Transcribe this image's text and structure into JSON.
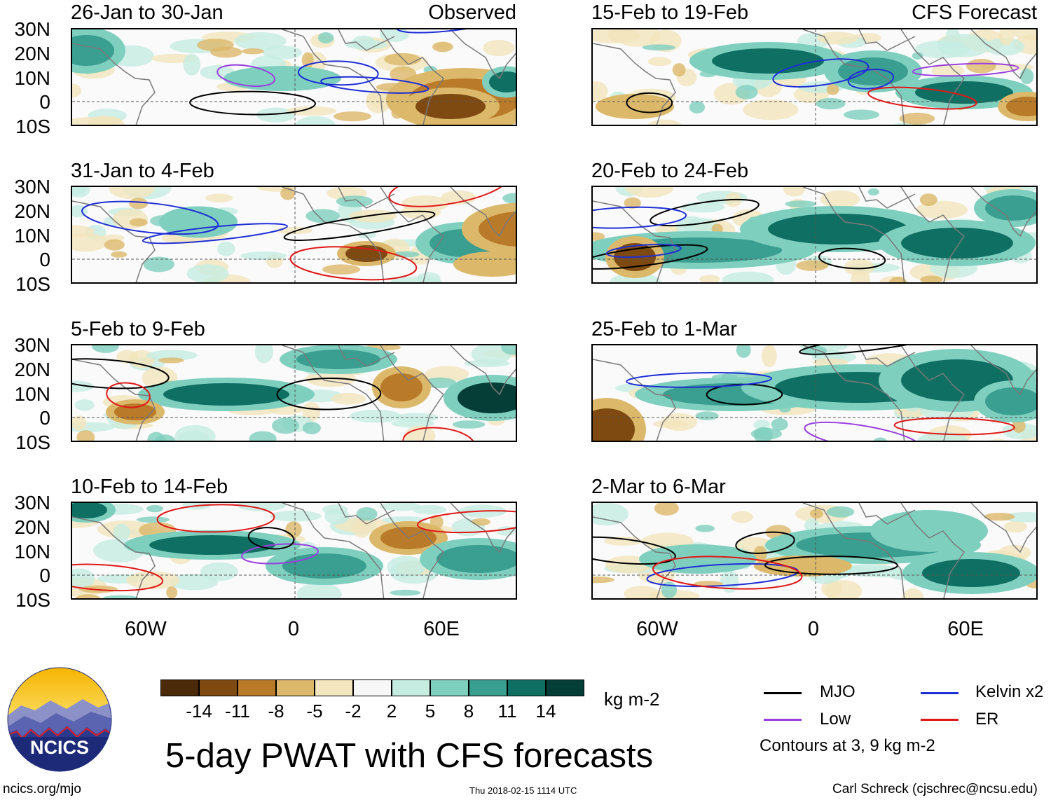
{
  "panels": [
    {
      "title": "26-Jan to 30-Jan",
      "tag": "Observed"
    },
    {
      "title": "31-Jan to 4-Feb",
      "tag": ""
    },
    {
      "title": "5-Feb to 9-Feb",
      "tag": ""
    },
    {
      "title": "10-Feb to 14-Feb",
      "tag": ""
    },
    {
      "title": "15-Feb to 19-Feb",
      "tag": "CFS Forecast"
    },
    {
      "title": "20-Feb to 24-Feb",
      "tag": ""
    },
    {
      "title": "25-Feb to 1-Mar",
      "tag": ""
    },
    {
      "title": "2-Mar to 6-Mar",
      "tag": ""
    }
  ],
  "lat_labels": [
    "30N",
    "20N",
    "10N",
    "0",
    "10S"
  ],
  "lon_labels": [
    "60W",
    "0",
    "60E"
  ],
  "colorbar": {
    "colors": [
      "#4a2a08",
      "#7e4a12",
      "#b97a2a",
      "#dcb86a",
      "#f3e5bd",
      "#f7f7f7",
      "#c6ece2",
      "#7fcfbf",
      "#3a9e90",
      "#0f6f63",
      "#053e36"
    ],
    "labels": [
      "-14",
      "-11",
      "-8",
      "-5",
      "-2",
      "2",
      "5",
      "8",
      "11",
      "14"
    ],
    "unit": "kg m-2"
  },
  "title": "5-day PWAT with CFS forecasts",
  "legend": {
    "items": [
      {
        "label": "MJO",
        "color": "#000000"
      },
      {
        "label": "Kelvin x2",
        "color": "#1f2fd6"
      },
      {
        "label": "Low",
        "color": "#9a40e0"
      },
      {
        "label": "ER",
        "color": "#e01818"
      }
    ],
    "note": "Contours at 3, 9 kg m-2"
  },
  "logo": {
    "text": "NCICS"
  },
  "footer": {
    "left": "ncics.org/mjo",
    "center": "Thu 2018-02-15 1114 UTC",
    "right": "Carl Schreck (cjschrec@ncsu.edu)"
  }
}
